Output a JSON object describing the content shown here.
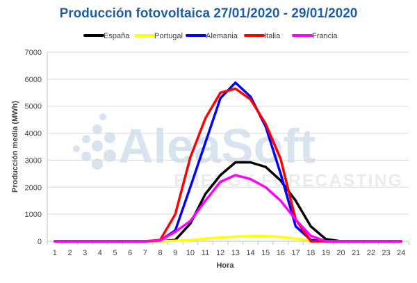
{
  "chart_data": {
    "type": "line",
    "title": "Producción fotovoltaica 27/01/2020 - 29/01/2020",
    "xlabel": "Hora",
    "ylabel": "Producción media (MWh)",
    "ylim": [
      0,
      7000
    ],
    "yticks": [
      0,
      1000,
      2000,
      3000,
      4000,
      5000,
      6000,
      7000
    ],
    "x": [
      1,
      2,
      3,
      4,
      5,
      6,
      7,
      8,
      9,
      10,
      11,
      12,
      13,
      14,
      15,
      16,
      17,
      18,
      19,
      20,
      21,
      22,
      23,
      24
    ],
    "grid": "horizontal",
    "legend_position": "top",
    "watermark": {
      "brand": "AleaSoft",
      "tagline": "ENERGY FORECASTING"
    },
    "series": [
      {
        "name": "España",
        "color": "#000000",
        "values": [
          0,
          0,
          0,
          0,
          0,
          0,
          0,
          0,
          50,
          650,
          1750,
          2450,
          2920,
          2920,
          2750,
          2250,
          1500,
          550,
          80,
          0,
          0,
          0,
          0,
          0
        ]
      },
      {
        "name": "Portugal",
        "color": "#ffff00",
        "values": [
          0,
          0,
          0,
          0,
          0,
          0,
          0,
          0,
          20,
          40,
          100,
          140,
          170,
          190,
          190,
          160,
          100,
          30,
          0,
          0,
          0,
          0,
          0,
          0
        ]
      },
      {
        "name": "Alemania",
        "color": "#0000ff",
        "values": [
          0,
          0,
          0,
          0,
          0,
          0,
          0,
          30,
          400,
          2000,
          3650,
          5300,
          5870,
          5350,
          4250,
          2500,
          550,
          50,
          0,
          0,
          0,
          0,
          0,
          0
        ]
      },
      {
        "name": "Italia",
        "color": "#ff0000",
        "values": [
          0,
          0,
          0,
          0,
          0,
          0,
          0,
          50,
          1000,
          3100,
          4550,
          5500,
          5650,
          5250,
          4350,
          3050,
          800,
          0,
          0,
          0,
          0,
          0,
          0,
          0
        ]
      },
      {
        "name": "Francia",
        "color": "#ff00ff",
        "values": [
          0,
          0,
          0,
          0,
          0,
          0,
          0,
          30,
          350,
          750,
          1500,
          2200,
          2450,
          2300,
          2000,
          1500,
          800,
          200,
          0,
          0,
          0,
          0,
          0,
          0
        ]
      }
    ]
  }
}
